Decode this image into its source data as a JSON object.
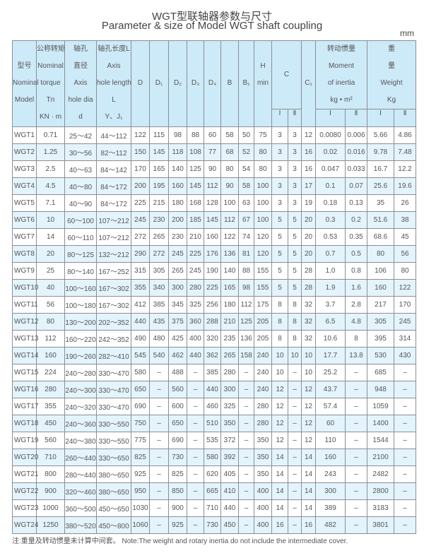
{
  "title_cn": "WGT型联轴器参数与尺寸",
  "title_en": "Parameter & size of Model WGT shaft coupling",
  "unit": "mm",
  "header": {
    "model": [
      "",
      "型号",
      "Nominal",
      "Model",
      ""
    ],
    "torque": [
      "公称转矩",
      "Nominal",
      "torque",
      "Tn",
      "KN · m"
    ],
    "dia": [
      "轴孔",
      "直径",
      "Axis",
      "hole dia",
      "d"
    ],
    "length": [
      "轴孔长度L",
      "Axis",
      "hole length",
      "L",
      "Y、J₁"
    ],
    "D": [
      "",
      "",
      "D",
      "",
      ""
    ],
    "D1": [
      "",
      "",
      "D₁",
      "",
      ""
    ],
    "D2": [
      "",
      "",
      "D₂",
      "",
      ""
    ],
    "D3": [
      "",
      "",
      "D₃",
      "",
      ""
    ],
    "D4": [
      "",
      "",
      "D₄",
      "",
      ""
    ],
    "B": [
      "",
      "",
      "B",
      "",
      ""
    ],
    "B1": [
      "",
      "",
      "B₁",
      "",
      ""
    ],
    "H": [
      "",
      "H",
      "min",
      "",
      ""
    ],
    "C": [
      "C"
    ],
    "C1": [
      "",
      "",
      "C₁",
      "",
      ""
    ],
    "inertia": [
      "转动惯量",
      "Moment",
      "of  inertia",
      "kg • m²"
    ],
    "weight": [
      "重",
      "量",
      "Weight",
      "Kg"
    ],
    "sub": [
      "Ⅰ",
      "Ⅱ",
      "Ⅰ",
      "Ⅱ",
      "Ⅰ",
      "Ⅱ"
    ]
  },
  "rows": [
    [
      "WGT1",
      "0.71",
      "25～42",
      "44～112",
      "122",
      "115",
      "98",
      "88",
      "60",
      "58",
      "50",
      "75",
      "3",
      "3",
      "12",
      "0.0080",
      "0.006",
      "5.66",
      "4.86"
    ],
    [
      "WGT2",
      "1.25",
      "30～56",
      "82～112",
      "150",
      "145",
      "118",
      "108",
      "77",
      "68",
      "52",
      "80",
      "3",
      "3",
      "16",
      "0.02",
      "0.016",
      "9.78",
      "7.48"
    ],
    [
      "WGT3",
      "2.5",
      "40～63",
      "84～142",
      "170",
      "165",
      "140",
      "125",
      "90",
      "80",
      "54",
      "80",
      "3",
      "3",
      "16",
      "0.047",
      "0.033",
      "16.7",
      "12.2"
    ],
    [
      "WGT4",
      "4.5",
      "40～80",
      "84～172",
      "200",
      "195",
      "160",
      "145",
      "112",
      "90",
      "58",
      "100",
      "3",
      "3",
      "17",
      "0.1",
      "0.07",
      "25.6",
      "19.6"
    ],
    [
      "WGT5",
      "7.1",
      "40～90",
      "84～172",
      "225",
      "215",
      "180",
      "168",
      "128",
      "100",
      "63",
      "100",
      "3",
      "3",
      "19",
      "0.18",
      "0.13",
      "35",
      "26"
    ],
    [
      "WGT6",
      "10",
      "60～100",
      "107～212",
      "245",
      "230",
      "200",
      "185",
      "145",
      "112",
      "67",
      "100",
      "5",
      "5",
      "20",
      "0.3",
      "0.2",
      "51.6",
      "38"
    ],
    [
      "WGT7",
      "14",
      "60～110",
      "107～212",
      "272",
      "265",
      "230",
      "210",
      "160",
      "122",
      "74",
      "120",
      "5",
      "5",
      "20",
      "0.53",
      "0.35",
      "68.6",
      "45"
    ],
    [
      "WGT8",
      "20",
      "80～125",
      "132～212",
      "290",
      "272",
      "245",
      "225",
      "176",
      "136",
      "81",
      "120",
      "5",
      "5",
      "20",
      "0.7",
      "0.5",
      "80",
      "56"
    ],
    [
      "WGT9",
      "25",
      "80～140",
      "167～252",
      "315",
      "305",
      "265",
      "245",
      "190",
      "140",
      "88",
      "155",
      "5",
      "5",
      "28",
      "1.0",
      "0.8",
      "106",
      "80"
    ],
    [
      "WGT10",
      "40",
      "100～160",
      "167～302",
      "355",
      "340",
      "300",
      "280",
      "225",
      "165",
      "98",
      "155",
      "5",
      "5",
      "28",
      "1.9",
      "1.6",
      "160",
      "122"
    ],
    [
      "WGT11",
      "56",
      "100～180",
      "167～302",
      "412",
      "385",
      "345",
      "325",
      "256",
      "180",
      "112",
      "175",
      "8",
      "8",
      "32",
      "3.7",
      "2.8",
      "217",
      "170"
    ],
    [
      "WGT12",
      "80",
      "130～200",
      "202～352",
      "440",
      "435",
      "375",
      "360",
      "288",
      "210",
      "125",
      "205",
      "8",
      "8",
      "32",
      "6.5",
      "4.8",
      "305",
      "245"
    ],
    [
      "WGT13",
      "112",
      "160～220",
      "242～352",
      "490",
      "480",
      "425",
      "400",
      "320",
      "235",
      "136",
      "205",
      "8",
      "8",
      "32",
      "10.6",
      "8",
      "395",
      "314"
    ],
    [
      "WGT14",
      "160",
      "190～260",
      "282～410",
      "545",
      "540",
      "462",
      "440",
      "362",
      "265",
      "158",
      "240",
      "10",
      "10",
      "10",
      "17.7",
      "13.8",
      "530",
      "430"
    ],
    [
      "WGT15",
      "224",
      "240～280",
      "330～470",
      "580",
      "–",
      "488",
      "–",
      "385",
      "280",
      "–",
      "240",
      "10",
      "–",
      "10",
      "25.2",
      "–",
      "685",
      "–"
    ],
    [
      "WGT16",
      "280",
      "240～300",
      "330～470",
      "650",
      "–",
      "560",
      "–",
      "440",
      "300",
      "–",
      "240",
      "12",
      "–",
      "12",
      "43.7",
      "–",
      "948",
      "–"
    ],
    [
      "WGT17",
      "355",
      "240～320",
      "330～470",
      "690",
      "–",
      "600",
      "–",
      "460",
      "325",
      "–",
      "280",
      "12",
      "–",
      "12",
      "57.4",
      "–",
      "1059",
      "–"
    ],
    [
      "WGT18",
      "450",
      "240～360",
      "330～550",
      "750",
      "–",
      "650",
      "–",
      "510",
      "350",
      "–",
      "280",
      "12",
      "–",
      "12",
      "60",
      "–",
      "1400",
      "–"
    ],
    [
      "WGT19",
      "560",
      "240～380",
      "330～550",
      "775",
      "–",
      "690",
      "–",
      "535",
      "372",
      "–",
      "350",
      "12",
      "–",
      "12",
      "110",
      "–",
      "1544",
      "–"
    ],
    [
      "WGT20",
      "710",
      "260～440",
      "330～650",
      "825",
      "–",
      "730",
      "–",
      "580",
      "392",
      "–",
      "350",
      "14",
      "–",
      "14",
      "160",
      "–",
      "2100",
      "–"
    ],
    [
      "WGT21",
      "800",
      "280～440",
      "380～650",
      "925",
      "–",
      "825",
      "–",
      "620",
      "405",
      "–",
      "350",
      "14",
      "–",
      "14",
      "243",
      "–",
      "2482",
      "–"
    ],
    [
      "WGT22",
      "900",
      "320～460",
      "380～650",
      "950",
      "–",
      "850",
      "–",
      "665",
      "410",
      "–",
      "400",
      "14",
      "–",
      "14",
      "300",
      "–",
      "2800",
      "–"
    ],
    [
      "WGT23",
      "1000",
      "360～500",
      "450～650",
      "1030",
      "–",
      "900",
      "–",
      "710",
      "440",
      "–",
      "400",
      "14",
      "–",
      "14",
      "389",
      "–",
      "3183",
      "–"
    ],
    [
      "WGT24",
      "1250",
      "380～520",
      "450～800",
      "1060",
      "–",
      "925",
      "–",
      "730",
      "450",
      "–",
      "400",
      "16",
      "–",
      "16",
      "482",
      "–",
      "3801",
      "–"
    ]
  ],
  "note": "注:重量及转动惯量未计算中间套。 Note:The weight and rotary inertia do not include the intermediate cover.",
  "colors": {
    "header_bg": "#cdeaf8",
    "alt_row_bg": "#e4f4fc",
    "border": "#8a8f94"
  }
}
